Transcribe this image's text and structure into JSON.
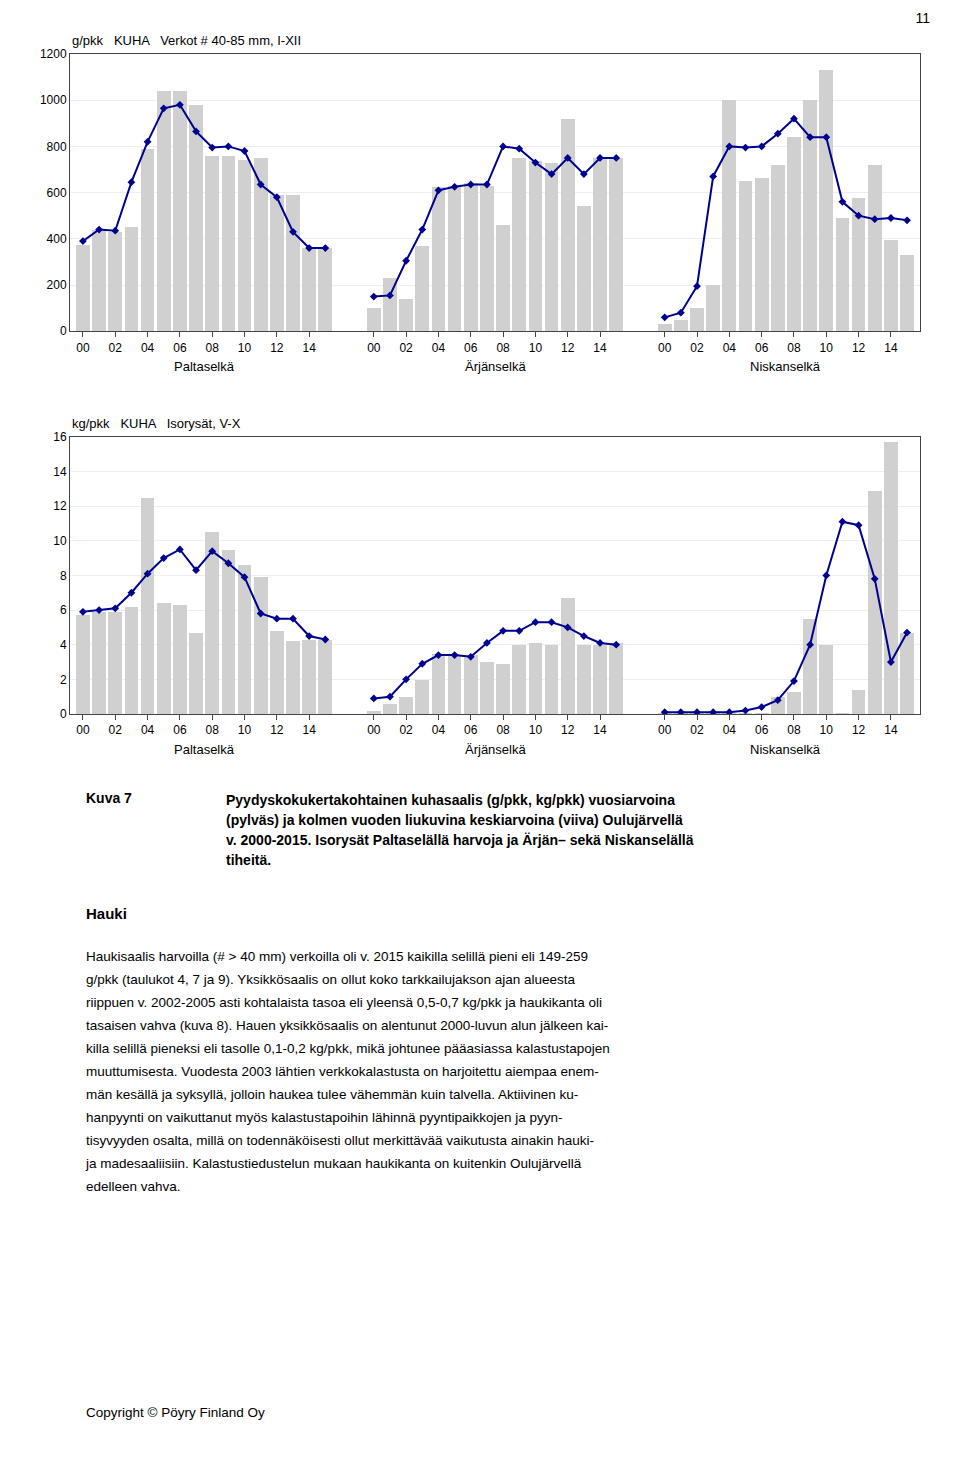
{
  "chart_data": [
    {
      "type": "bar",
      "title": "g/pkk   KUHA   Verkot # 40-85 mm, I-XII",
      "categories": [
        "00",
        null,
        "02",
        null,
        "04",
        null,
        "06",
        null,
        "08",
        null,
        "10",
        null,
        "12",
        null,
        "14",
        null
      ],
      "ylim": [
        0,
        1200
      ],
      "yticks": [
        0,
        200,
        400,
        600,
        800,
        1000,
        1200
      ],
      "grid": true,
      "sections": [
        {
          "name": "Paltaselkä",
          "series": [
            {
              "type": "bar",
              "color": "#d0d0d0",
              "values": [
                375,
                440,
                430,
                450,
                790,
                1040,
                1040,
                980,
                760,
                760,
                740,
                750,
                590,
                590,
                360,
                360
              ]
            },
            {
              "type": "line",
              "color": "#000090",
              "marker": "diamond",
              "values": [
                390,
                440,
                435,
                645,
                820,
                965,
                980,
                865,
                795,
                800,
                780,
                635,
                580,
                430,
                360,
                360
              ]
            }
          ]
        },
        {
          "name": "Ärjänselkä",
          "series": [
            {
              "type": "bar",
              "color": "#d0d0d0",
              "values": [
                100,
                230,
                140,
                370,
                625,
                630,
                640,
                630,
                460,
                750,
                735,
                730,
                920,
                540,
                750,
                750
              ]
            },
            {
              "type": "line",
              "color": "#000090",
              "marker": "diamond",
              "values": [
                150,
                155,
                305,
                440,
                610,
                625,
                635,
                635,
                800,
                790,
                730,
                680,
                750,
                680,
                750,
                750
              ]
            }
          ]
        },
        {
          "name": "Niskanselkä",
          "series": [
            {
              "type": "bar",
              "color": "#d0d0d0",
              "values": [
                30,
                50,
                100,
                200,
                1000,
                650,
                665,
                720,
                840,
                1000,
                1130,
                490,
                575,
                720,
                395,
                330
              ]
            },
            {
              "type": "line",
              "color": "#000090",
              "marker": "diamond",
              "values": [
                60,
                80,
                195,
                670,
                800,
                795,
                800,
                855,
                920,
                840,
                840,
                560,
                500,
                485,
                490,
                480
              ]
            }
          ]
        }
      ]
    },
    {
      "type": "bar",
      "title": "kg/pkk   KUHA   Isorysät, V-X",
      "categories": [
        "00",
        null,
        "02",
        null,
        "04",
        null,
        "06",
        null,
        "08",
        null,
        "10",
        null,
        "12",
        null,
        "14",
        null
      ],
      "ylim": [
        0,
        16
      ],
      "yticks": [
        0,
        2,
        4,
        6,
        8,
        10,
        12,
        14,
        16
      ],
      "grid": true,
      "sections": [
        {
          "name": "Paltaselkä",
          "series": [
            {
              "type": "bar",
              "color": "#d0d0d0",
              "values": [
                5.7,
                5.9,
                5.9,
                6.2,
                12.5,
                6.4,
                6.3,
                4.7,
                10.5,
                9.5,
                8.6,
                7.9,
                4.8,
                4.2,
                4.3,
                4.3
              ]
            },
            {
              "type": "line",
              "color": "#000090",
              "marker": "diamond",
              "values": [
                5.9,
                6.0,
                6.1,
                7.0,
                8.1,
                9.0,
                9.5,
                8.3,
                9.4,
                8.7,
                7.9,
                5.8,
                5.5,
                5.5,
                4.5,
                4.3
              ]
            }
          ]
        },
        {
          "name": "Ärjänselkä",
          "series": [
            {
              "type": "bar",
              "color": "#d0d0d0",
              "values": [
                0.2,
                0.6,
                1.0,
                2.0,
                3.5,
                3.4,
                3.4,
                3.0,
                2.9,
                4.0,
                4.1,
                4.0,
                6.7,
                4.0,
                4.0,
                4.1
              ]
            },
            {
              "type": "line",
              "color": "#000090",
              "marker": "diamond",
              "values": [
                0.9,
                1.0,
                2.0,
                2.9,
                3.4,
                3.4,
                3.3,
                4.1,
                4.8,
                4.8,
                5.3,
                5.3,
                5.0,
                4.5,
                4.1,
                4.0
              ]
            }
          ]
        },
        {
          "name": "Niskanselkä",
          "series": [
            {
              "type": "bar",
              "color": "#d0d0d0",
              "values": [
                0.05,
                0.05,
                0.05,
                0.05,
                0.05,
                0.05,
                0.05,
                1.0,
                1.3,
                5.5,
                4.0,
                0.05,
                1.4,
                12.9,
                15.7,
                4.7
              ]
            },
            {
              "type": "line",
              "color": "#000090",
              "marker": "diamond",
              "values": [
                0.1,
                0.1,
                0.1,
                0.1,
                0.1,
                0.2,
                0.4,
                0.8,
                1.9,
                4.0,
                8.0,
                11.1,
                10.9,
                7.8,
                3.0,
                4.7
              ]
            }
          ]
        }
      ]
    }
  ],
  "page_number": "11",
  "caption_label": "Kuva 7",
  "caption": [
    "Pyydyskokukertakohtainen kuhasaalis (g/pkk, kg/pkk) vuosiarvoina",
    "(pylväs) ja kolmen vuoden liukuvina keskiarvoina (viiva) Oulujärvellä",
    "v. 2000-2015. Isorysät Paltaselällä harvoja ja Ärjän– sekä Niskanselällä",
    "tiheitä."
  ],
  "heading": "Hauki",
  "body": [
    "Haukisaalis harvoilla (# > 40 mm) verkoilla oli v. 2015 kaikilla selillä pieni eli 149-259",
    "g/pkk (taulukot 4, 7 ja 9). Yksikkösaalis on ollut koko tarkkailujakson ajan alueesta",
    "riippuen v. 2002-2005 asti kohtalaista tasoa eli yleensä 0,5-0,7 kg/pkk ja haukikanta oli",
    "tasaisen vahva (kuva 8). Hauen yksikkösaalis on alentunut 2000-luvun alun jälkeen kai-",
    "killa selillä pieneksi eli tasolle 0,1-0,2 kg/pkk, mikä johtunee pääasiassa kalastustapojen",
    "muuttumisesta. Vuodesta 2003 lähtien verkkokalastusta on harjoitettu aiempaa enem-",
    "män kesällä ja syksyllä, jolloin haukea tulee vähemmän kuin talvella. Aktiivinen ku-",
    "hanpyynti on vaikuttanut myös kalastustapoihin lähinnä pyyntipaikkojen ja pyyn-",
    "tisyvyyden osalta, millä on todennäköisesti ollut merkittävää vaikutusta ainakin hauki-",
    "ja madesaaliisiin. Kalastustiedustelun mukaan haukikanta on kuitenkin Oulujärvellä",
    "edelleen vahva."
  ],
  "copyright": "Copyright © Pöyry Finland Oy"
}
